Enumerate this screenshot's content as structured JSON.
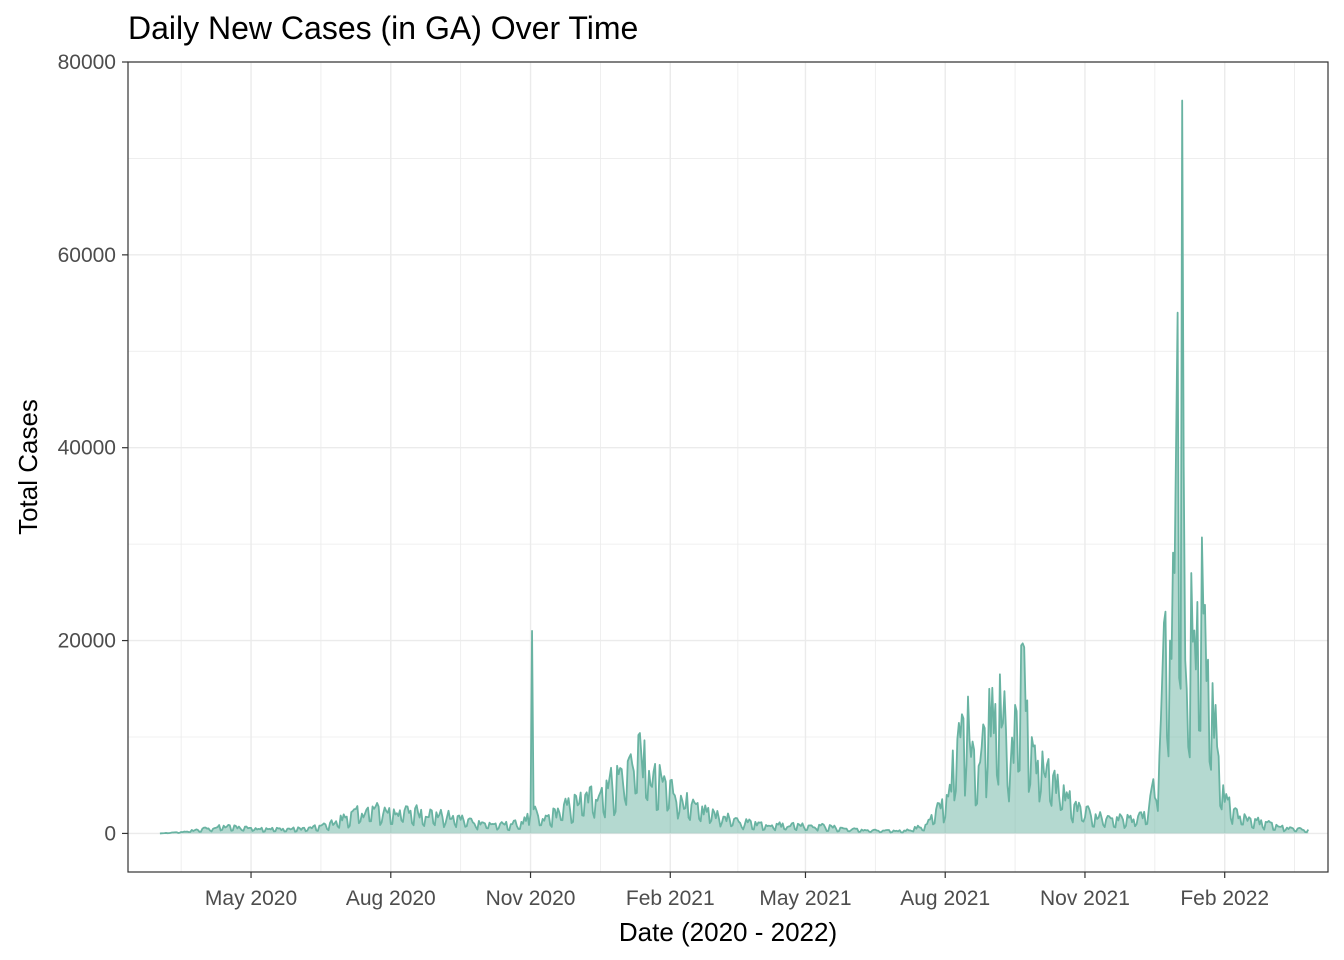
{
  "chart_data": {
    "type": "area",
    "title": "Daily New Cases (in GA) Over Time",
    "xlabel": "Date (2020 - 2022)",
    "ylabel": "Total Cases",
    "ylim": [
      -4000,
      80000
    ],
    "xlim": [
      "2020-02-10",
      "2022-04-10"
    ],
    "y_ticks": [
      0,
      20000,
      40000,
      60000,
      80000
    ],
    "y_tick_labels": [
      "0",
      "20000",
      "40000",
      "60000",
      "80000"
    ],
    "x_ticks": [
      "2020-05-01",
      "2020-08-01",
      "2020-11-01",
      "2021-02-01",
      "2021-05-01",
      "2021-08-01",
      "2021-11-01",
      "2022-02-01"
    ],
    "x_tick_labels": [
      "May 2020",
      "Aug 2020",
      "Nov 2020",
      "Feb 2021",
      "May 2021",
      "Aug 2021",
      "Nov 2021",
      "Feb 2022"
    ],
    "grid": true,
    "legend": "none",
    "colors": {
      "line": "#69b3a2",
      "fill": "#69b3a2",
      "fill_opacity": 0.5,
      "grid": "#ebebeb",
      "border": "#333333"
    },
    "x": [
      "2020-03-02",
      "2020-03-16",
      "2020-03-30",
      "2020-04-13",
      "2020-04-27",
      "2020-05-11",
      "2020-05-25",
      "2020-06-08",
      "2020-06-15",
      "2020-06-22",
      "2020-07-06",
      "2020-07-20",
      "2020-08-03",
      "2020-08-17",
      "2020-08-31",
      "2020-09-14",
      "2020-09-28",
      "2020-10-12",
      "2020-10-26",
      "2020-11-01",
      "2020-11-02",
      "2020-11-03",
      "2020-11-09",
      "2020-11-23",
      "2020-12-07",
      "2020-12-21",
      "2021-01-04",
      "2021-01-11",
      "2021-01-18",
      "2021-02-01",
      "2021-02-15",
      "2021-03-01",
      "2021-03-15",
      "2021-03-29",
      "2021-04-12",
      "2021-04-26",
      "2021-05-10",
      "2021-05-24",
      "2021-06-07",
      "2021-06-21",
      "2021-07-05",
      "2021-07-19",
      "2021-07-26",
      "2021-08-02",
      "2021-08-09",
      "2021-08-16",
      "2021-08-23",
      "2021-08-30",
      "2021-09-06",
      "2021-09-13",
      "2021-09-20",
      "2021-09-27",
      "2021-10-04",
      "2021-10-11",
      "2021-10-18",
      "2021-10-25",
      "2021-11-08",
      "2021-11-22",
      "2021-12-06",
      "2021-12-13",
      "2021-12-20",
      "2021-12-24",
      "2021-12-27",
      "2021-12-30",
      "2022-01-01",
      "2022-01-03",
      "2022-01-04",
      "2022-01-05",
      "2022-01-06",
      "2022-01-07",
      "2022-01-10",
      "2022-01-13",
      "2022-01-17",
      "2022-01-20",
      "2022-01-24",
      "2022-01-27",
      "2022-01-31",
      "2022-02-03",
      "2022-02-07",
      "2022-02-14",
      "2022-02-21",
      "2022-02-28",
      "2022-03-07",
      "2022-03-14",
      "2022-03-21",
      "2022-03-28"
    ],
    "y": [
      0,
      150,
      500,
      800,
      700,
      550,
      500,
      600,
      800,
      1100,
      2200,
      2800,
      2500,
      2600,
      2200,
      1800,
      1300,
      1000,
      1200,
      2000,
      21000,
      2500,
      1500,
      3000,
      4000,
      5500,
      7500,
      10200,
      6500,
      5500,
      3000,
      2500,
      1500,
      1200,
      1000,
      1000,
      900,
      600,
      400,
      300,
      300,
      900,
      2500,
      4000,
      9800,
      14200,
      7000,
      15000,
      16500,
      7000,
      19500,
      10000,
      8500,
      6000,
      5000,
      3000,
      2000,
      1700,
      1800,
      2500,
      8000,
      23000,
      20000,
      27000,
      54000,
      15000,
      76000,
      38000,
      18000,
      15000,
      27000,
      17000,
      30700,
      15800,
      15600,
      9000,
      5000,
      3500,
      2500,
      2000,
      1500,
      1200,
      900,
      600,
      500,
      400
    ]
  }
}
